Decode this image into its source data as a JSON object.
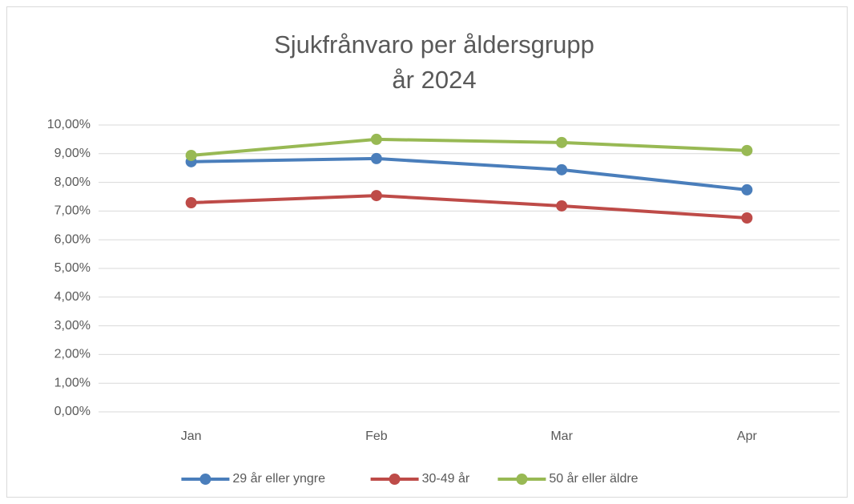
{
  "chart_data": {
    "type": "line",
    "title": [
      "Sjukfrånvaro per åldersgrupp",
      "år 2024"
    ],
    "categories": [
      "Jan",
      "Feb",
      "Mar",
      "Apr"
    ],
    "series": [
      {
        "name": "29 år eller yngre",
        "color": "#4a7ebb",
        "values": [
          8.72,
          8.83,
          8.44,
          7.74
        ]
      },
      {
        "name": "30-49 år",
        "color": "#be4b48",
        "values": [
          7.29,
          7.54,
          7.18,
          6.76
        ]
      },
      {
        "name": "50 år eller äldre",
        "color": "#98b954",
        "values": [
          8.94,
          9.5,
          9.39,
          9.11
        ]
      }
    ],
    "ylim": [
      0,
      10
    ],
    "yticks": [
      {
        "value": 0,
        "label": "0,00%"
      },
      {
        "value": 1,
        "label": "1,00%"
      },
      {
        "value": 2,
        "label": "2,00%"
      },
      {
        "value": 3,
        "label": "3,00%"
      },
      {
        "value": 4,
        "label": "4,00%"
      },
      {
        "value": 5,
        "label": "5,00%"
      },
      {
        "value": 6,
        "label": "6,00%"
      },
      {
        "value": 7,
        "label": "7,00%"
      },
      {
        "value": 8,
        "label": "8,00%"
      },
      {
        "value": 9,
        "label": "9,00%"
      },
      {
        "value": 10,
        "label": "10,00%"
      }
    ],
    "grid": true,
    "legend": "bottom"
  }
}
